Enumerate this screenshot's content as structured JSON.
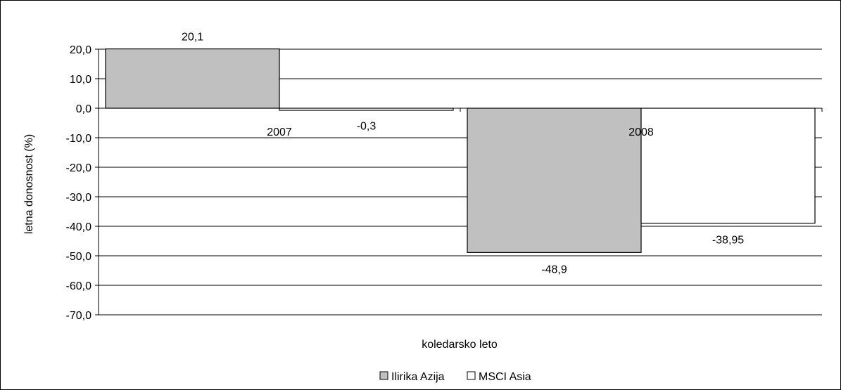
{
  "chart_data": {
    "type": "bar",
    "categories": [
      "2007",
      "2008"
    ],
    "series": [
      {
        "name": "Ilirika Azija",
        "values": [
          20.1,
          -48.9
        ],
        "labels": [
          "20,1",
          "-48,9"
        ],
        "color": "#c0c0c0"
      },
      {
        "name": "MSCI Asia",
        "values": [
          -0.3,
          -38.95
        ],
        "labels": [
          "-0,3",
          "-38,95"
        ],
        "color": "#ffffff"
      }
    ],
    "xlabel": "koledarsko leto",
    "ylabel": "letna donosnost (%)",
    "ylim": [
      -70,
      20
    ],
    "yticks": [
      {
        "value": 20,
        "label": "20,0"
      },
      {
        "value": 10,
        "label": "10,0"
      },
      {
        "value": 0,
        "label": "0,0"
      },
      {
        "value": -10,
        "label": "-10,0"
      },
      {
        "value": -20,
        "label": "-20,0"
      },
      {
        "value": -30,
        "label": "-30,0"
      },
      {
        "value": -40,
        "label": "-40,0"
      },
      {
        "value": -50,
        "label": "-50,0"
      },
      {
        "value": -60,
        "label": "-60,0"
      },
      {
        "value": -70,
        "label": "-70,0"
      }
    ],
    "grid": true,
    "legend_position": "bottom"
  }
}
